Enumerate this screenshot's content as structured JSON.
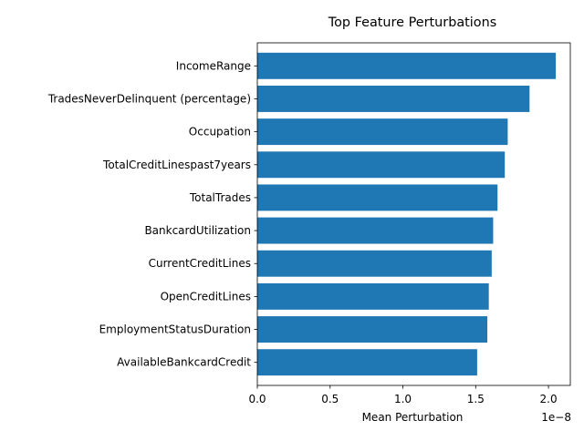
{
  "chart_data": {
    "type": "bar",
    "orientation": "horizontal",
    "title": "Top Feature Perturbations",
    "xlabel": "Mean Perturbation",
    "ylabel": "",
    "x_scale_label": "1e−8",
    "x_scale_factor": 1e-08,
    "xlim": [
      0,
      2.15
    ],
    "xticks": [
      0,
      0.5,
      1.0,
      1.5,
      2.0
    ],
    "xtick_labels": [
      "0.0",
      "0.5",
      "1.0",
      "1.5",
      "2.0"
    ],
    "categories": [
      "IncomeRange",
      "TradesNeverDelinquent (percentage)",
      "Occupation",
      "TotalCreditLinespast7years",
      "TotalTrades",
      "BankcardUtilization",
      "CurrentCreditLines",
      "OpenCreditLines",
      "EmploymentStatusDuration",
      "AvailableBankcardCredit"
    ],
    "values": [
      2.05,
      1.87,
      1.72,
      1.7,
      1.65,
      1.62,
      1.61,
      1.59,
      1.58,
      1.51
    ],
    "bar_color": "#1f77b4",
    "grid": false,
    "legend": "none"
  }
}
